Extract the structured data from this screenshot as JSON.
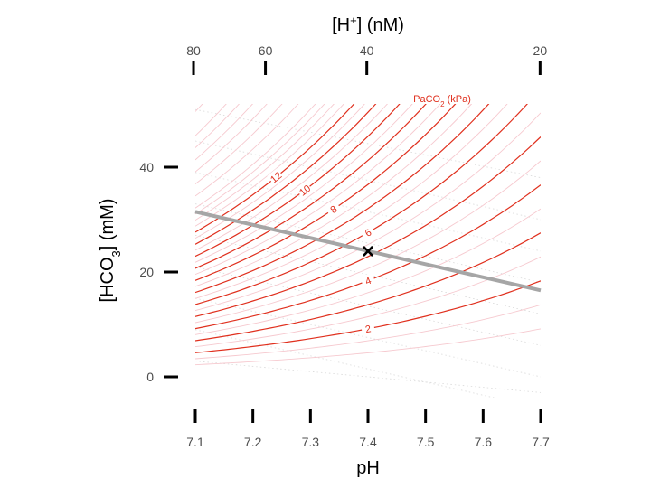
{
  "chart_data": {
    "type": "line",
    "title": "",
    "xlabel": "pH",
    "ylabel": "[HCO3] (mM)",
    "top_xlabel": "[H+] (nM)",
    "xlim": [
      7.1,
      7.7
    ],
    "ylim": [
      0,
      50
    ],
    "x_ticks": [
      7.1,
      7.2,
      7.3,
      7.4,
      7.5,
      7.6,
      7.7
    ],
    "y_ticks": [
      0,
      20,
      40
    ],
    "top_ticks": [
      80,
      60,
      40,
      20
    ],
    "grid": false,
    "legend": "none",
    "isopleth_title": "PaCO2 (kPa)",
    "isopleths_major": [
      2,
      3,
      4,
      5,
      6,
      7,
      8,
      9,
      10,
      11,
      12
    ],
    "isopleth_labels": [
      2,
      4,
      6,
      8,
      10,
      12
    ],
    "isopleths_minor": [
      1,
      1.5,
      2.5,
      3.5,
      4.5,
      5.5,
      6.5,
      7.5,
      8.5,
      9.5,
      10.5,
      11.5,
      12.5,
      13,
      13.5,
      14,
      15,
      16,
      17,
      18,
      19,
      20,
      22,
      24,
      26
    ],
    "buffer_line": {
      "x": [
        7.1,
        7.7
      ],
      "y": [
        31.5,
        16.5
      ]
    },
    "marker": {
      "x": 7.4,
      "y": 24,
      "symbol": "×"
    },
    "colors": {
      "isopleth": "#e0301e",
      "isopleth_minor": "#f6c9cf",
      "buffer_line": "#a6a6a6",
      "marker": "#000000",
      "dotted": "#d9d9d9"
    }
  }
}
